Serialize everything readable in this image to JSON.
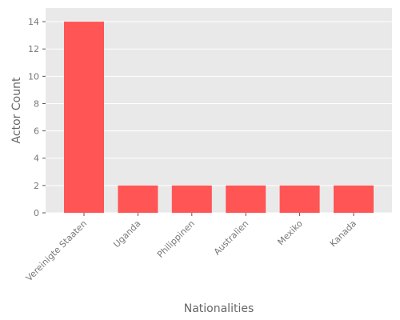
{
  "chart_data": {
    "type": "bar",
    "title": "",
    "xlabel": "Nationalities",
    "ylabel": "Actor Count",
    "categories": [
      "Vereinigte Staaten",
      "Uganda",
      "Philippinen",
      "Australien",
      "Mexiko",
      "Kanada"
    ],
    "values": [
      14,
      2,
      2,
      2,
      2,
      2
    ],
    "ylim": [
      0,
      15
    ],
    "yticks": [
      0,
      2,
      4,
      6,
      8,
      10,
      12,
      14
    ],
    "grid": true,
    "colors": {
      "bar": "#ff5555",
      "panel": "#e9e9e9",
      "grid": "#ffffff",
      "tick_text": "#777777",
      "axis_title": "#666666"
    }
  }
}
